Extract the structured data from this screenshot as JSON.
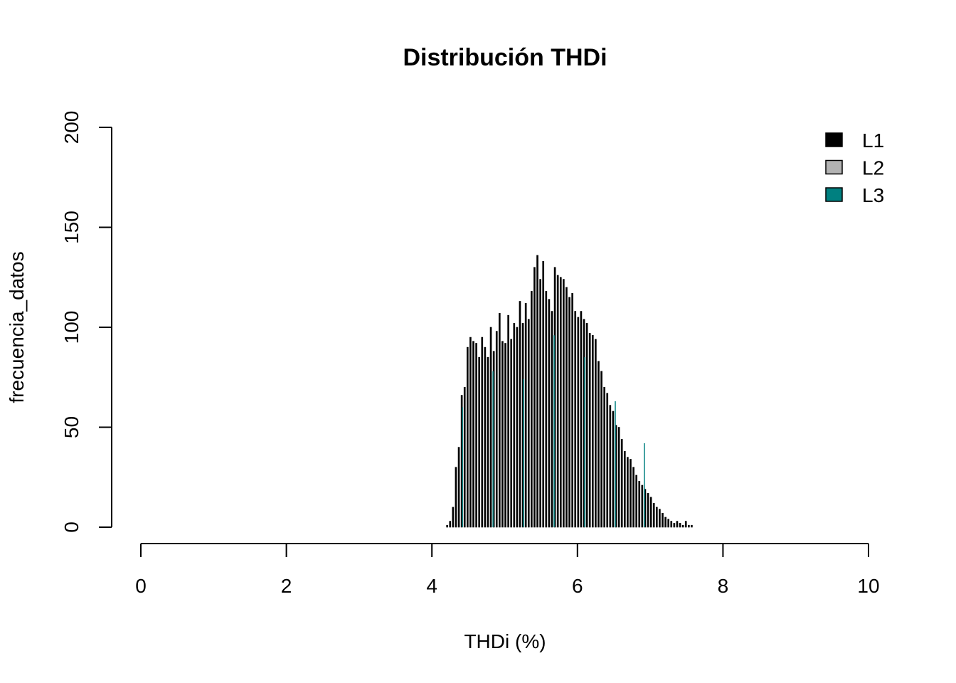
{
  "chart_data": {
    "type": "bar",
    "title": "Distribución THDi",
    "xlabel": "THDi (%)",
    "ylabel": "frecuencia_datos",
    "xlim": [
      0,
      10
    ],
    "ylim": [
      0,
      200
    ],
    "x_ticks": [
      "0",
      "2",
      "4",
      "6",
      "8",
      "10"
    ],
    "y_ticks": [
      "0",
      "50",
      "100",
      "150",
      "200"
    ],
    "grid": false,
    "legend_position": "top-right",
    "bin_width": 0.02,
    "series": [
      {
        "name": "L1",
        "color": "#000000",
        "bins": [
          [
            4.2,
            1
          ],
          [
            4.24,
            3
          ],
          [
            4.28,
            10
          ],
          [
            4.32,
            30
          ],
          [
            4.36,
            40
          ],
          [
            4.4,
            66
          ],
          [
            4.44,
            70
          ],
          [
            4.48,
            90
          ],
          [
            4.52,
            95
          ],
          [
            4.56,
            93
          ],
          [
            4.6,
            92
          ],
          [
            4.64,
            85
          ],
          [
            4.68,
            95
          ],
          [
            4.72,
            90
          ],
          [
            4.76,
            85
          ],
          [
            4.8,
            100
          ],
          [
            4.84,
            88
          ],
          [
            4.88,
            98
          ],
          [
            4.92,
            107
          ],
          [
            4.96,
            93
          ],
          [
            5.0,
            92
          ],
          [
            5.04,
            106
          ],
          [
            5.08,
            94
          ],
          [
            5.12,
            102
          ],
          [
            5.16,
            100
          ],
          [
            5.2,
            113
          ],
          [
            5.24,
            102
          ],
          [
            5.28,
            112
          ],
          [
            5.32,
            104
          ],
          [
            5.36,
            118
          ],
          [
            5.4,
            130
          ],
          [
            5.44,
            136
          ],
          [
            5.48,
            124
          ],
          [
            5.52,
            133
          ],
          [
            5.56,
            118
          ],
          [
            5.6,
            114
          ],
          [
            5.64,
            108
          ],
          [
            5.68,
            130
          ],
          [
            5.72,
            126
          ],
          [
            5.76,
            125
          ],
          [
            5.8,
            124
          ],
          [
            5.84,
            120
          ],
          [
            5.88,
            115
          ],
          [
            5.92,
            117
          ],
          [
            5.96,
            108
          ],
          [
            6.0,
            105
          ],
          [
            6.04,
            108
          ],
          [
            6.08,
            104
          ],
          [
            6.12,
            102
          ],
          [
            6.16,
            97
          ],
          [
            6.2,
            96
          ],
          [
            6.24,
            94
          ],
          [
            6.28,
            83
          ],
          [
            6.32,
            78
          ],
          [
            6.36,
            70
          ],
          [
            6.4,
            67
          ],
          [
            6.44,
            61
          ],
          [
            6.48,
            58
          ],
          [
            6.52,
            51
          ],
          [
            6.56,
            50
          ],
          [
            6.6,
            44
          ],
          [
            6.64,
            38
          ],
          [
            6.68,
            35
          ],
          [
            6.72,
            34
          ],
          [
            6.76,
            30
          ],
          [
            6.8,
            26
          ],
          [
            6.84,
            23
          ],
          [
            6.88,
            21
          ],
          [
            6.92,
            19
          ],
          [
            6.96,
            17
          ],
          [
            7.0,
            15
          ],
          [
            7.04,
            12
          ],
          [
            7.08,
            10
          ],
          [
            7.12,
            9
          ],
          [
            7.16,
            7
          ],
          [
            7.2,
            5
          ],
          [
            7.24,
            4
          ],
          [
            7.28,
            3
          ],
          [
            7.32,
            2
          ],
          [
            7.36,
            3
          ],
          [
            7.4,
            2
          ],
          [
            7.44,
            1
          ],
          [
            7.48,
            3
          ],
          [
            7.52,
            1
          ],
          [
            7.56,
            1
          ]
        ]
      },
      {
        "name": "L2",
        "color": "#b3b3b3",
        "bins": []
      },
      {
        "name": "L3",
        "color": "#008080",
        "lines": [
          [
            4.42,
            60
          ],
          [
            4.84,
            78
          ],
          [
            5.26,
            74
          ],
          [
            5.68,
            96
          ],
          [
            6.1,
            85
          ],
          [
            6.52,
            63
          ],
          [
            6.92,
            42
          ]
        ]
      }
    ]
  }
}
